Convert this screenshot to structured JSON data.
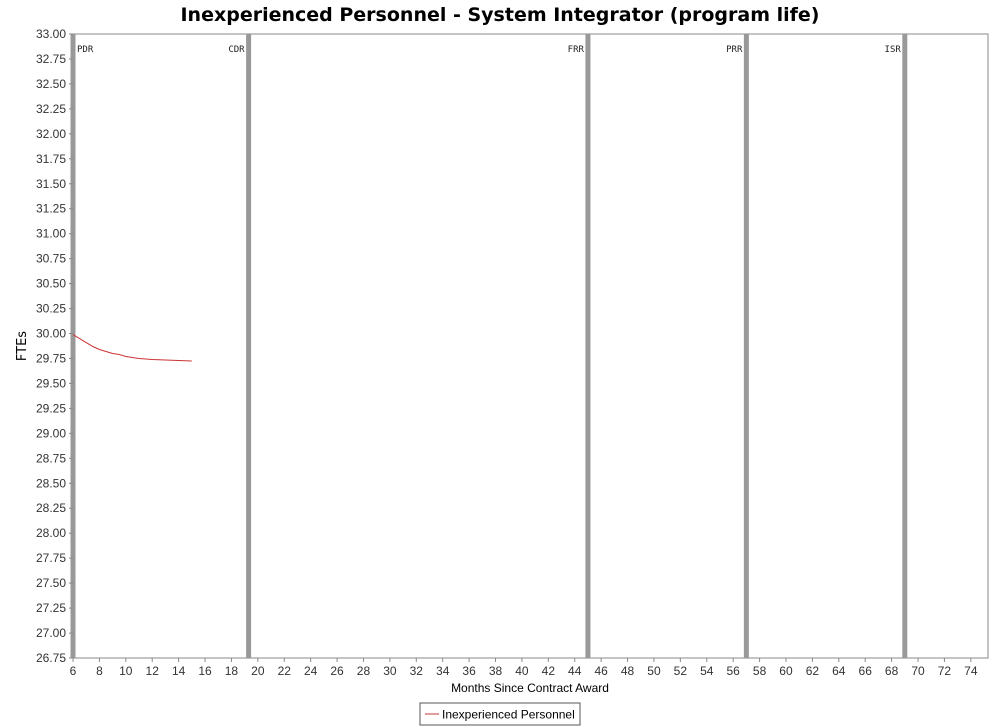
{
  "chart_data": {
    "type": "line",
    "title": "Inexperienced Personnel - System Integrator (program life)",
    "xlabel": "Months Since Contract Award",
    "ylabel": "FTEs",
    "xlim": [
      6,
      75.3
    ],
    "ylim": [
      26.75,
      33.0
    ],
    "x_ticks": [
      6,
      8,
      10,
      12,
      14,
      16,
      18,
      20,
      22,
      24,
      26,
      28,
      30,
      32,
      34,
      36,
      38,
      40,
      42,
      44,
      46,
      48,
      50,
      52,
      54,
      56,
      58,
      60,
      62,
      64,
      66,
      68,
      70,
      72,
      74
    ],
    "y_ticks": [
      26.75,
      27.0,
      27.25,
      27.5,
      27.75,
      28.0,
      28.25,
      28.5,
      28.75,
      29.0,
      29.25,
      29.5,
      29.75,
      30.0,
      30.25,
      30.5,
      30.75,
      31.0,
      31.25,
      31.5,
      31.75,
      32.0,
      32.25,
      32.5,
      32.75,
      33.0
    ],
    "grid": false,
    "legend": "bottom-center",
    "colors": {
      "series": "#cc3333",
      "marker": "#999999",
      "frame": "#888888"
    },
    "markers": [
      {
        "label": "PDR",
        "x": 6.0
      },
      {
        "label": "CDR",
        "x": 19.3
      },
      {
        "label": "FRR",
        "x": 45.0
      },
      {
        "label": "PRR",
        "x": 57.0
      },
      {
        "label": "ISR",
        "x": 69.0
      }
    ],
    "series": [
      {
        "name": "Inexperienced Personnel",
        "x": [
          6,
          6.5,
          7,
          7.5,
          8,
          8.5,
          9,
          9.5,
          10,
          10.5,
          11,
          11.5,
          12,
          13,
          14,
          15
        ],
        "y": [
          29.99,
          29.95,
          29.91,
          29.87,
          29.84,
          29.82,
          29.8,
          29.79,
          29.77,
          29.76,
          29.75,
          29.745,
          29.74,
          29.735,
          29.73,
          29.725
        ]
      }
    ]
  }
}
